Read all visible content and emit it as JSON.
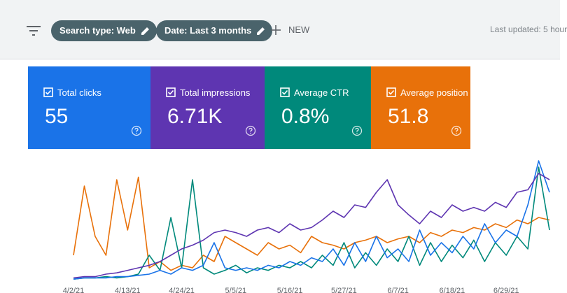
{
  "toolbar": {
    "filters": [
      "Search type: Web",
      "Date: Last 3 months"
    ],
    "new": "NEW",
    "last_updated": "Last updated: 5 hour"
  },
  "metrics": [
    {
      "label": "Total clicks",
      "value": "55",
      "color": "#1a73e8"
    },
    {
      "label": "Total impressions",
      "value": "6.71K",
      "color": "#5e35b1"
    },
    {
      "label": "Average CTR",
      "value": "0.8%",
      "color": "#00897b"
    },
    {
      "label": "Average position",
      "value": "51.8",
      "color": "#e8710a"
    }
  ],
  "chart_data": {
    "type": "line",
    "categories": [
      "4/2/21",
      null,
      null,
      null,
      null,
      "4/13/21",
      null,
      null,
      null,
      null,
      "4/24/21",
      null,
      null,
      null,
      null,
      "5/5/21",
      null,
      null,
      null,
      null,
      "5/16/21",
      null,
      null,
      null,
      null,
      "5/27/21",
      null,
      null,
      null,
      null,
      "6/7/21",
      null,
      null,
      null,
      null,
      "6/18/21",
      null,
      null,
      null,
      null,
      "6/29/21",
      null,
      null,
      null,
      null
    ],
    "ylim": [
      0,
      100
    ],
    "series": [
      {
        "color": "#e8710a",
        "values": [
          20,
          75,
          35,
          20,
          80,
          40,
          82,
          10,
          15,
          8,
          12,
          10,
          20,
          15,
          35,
          30,
          25,
          20,
          30,
          25,
          28,
          22,
          35,
          30,
          28,
          25,
          30,
          32,
          35,
          30,
          33,
          35,
          30,
          38,
          35,
          40,
          38,
          42,
          40,
          45,
          42,
          48,
          45,
          50,
          48
        ]
      },
      {
        "color": "#00897b",
        "values": [
          1,
          2,
          2,
          3,
          2,
          3,
          5,
          20,
          8,
          50,
          10,
          80,
          10,
          5,
          8,
          12,
          6,
          10,
          8,
          12,
          10,
          15,
          10,
          20,
          12,
          30,
          10,
          22,
          12,
          25,
          15,
          35,
          12,
          30,
          15,
          28,
          18,
          32,
          15,
          30,
          20,
          35,
          25,
          90,
          40
        ]
      },
      {
        "color": "#1a73e8",
        "values": [
          1,
          2,
          2,
          2,
          3,
          3,
          4,
          5,
          8,
          5,
          10,
          8,
          12,
          30,
          10,
          8,
          10,
          8,
          12,
          10,
          15,
          12,
          18,
          15,
          25,
          12,
          30,
          15,
          35,
          18,
          25,
          15,
          40,
          20,
          30,
          22,
          35,
          25,
          45,
          30,
          40,
          35,
          60,
          95,
          70
        ]
      },
      {
        "color": "#5e35b1",
        "values": [
          2,
          3,
          3,
          5,
          6,
          8,
          10,
          12,
          15,
          20,
          25,
          28,
          32,
          38,
          40,
          38,
          35,
          40,
          42,
          38,
          45,
          40,
          42,
          48,
          55,
          50,
          60,
          58,
          70,
          80,
          60,
          52,
          45,
          55,
          50,
          60,
          55,
          58,
          55,
          62,
          58,
          70,
          72,
          85,
          80
        ]
      }
    ]
  }
}
